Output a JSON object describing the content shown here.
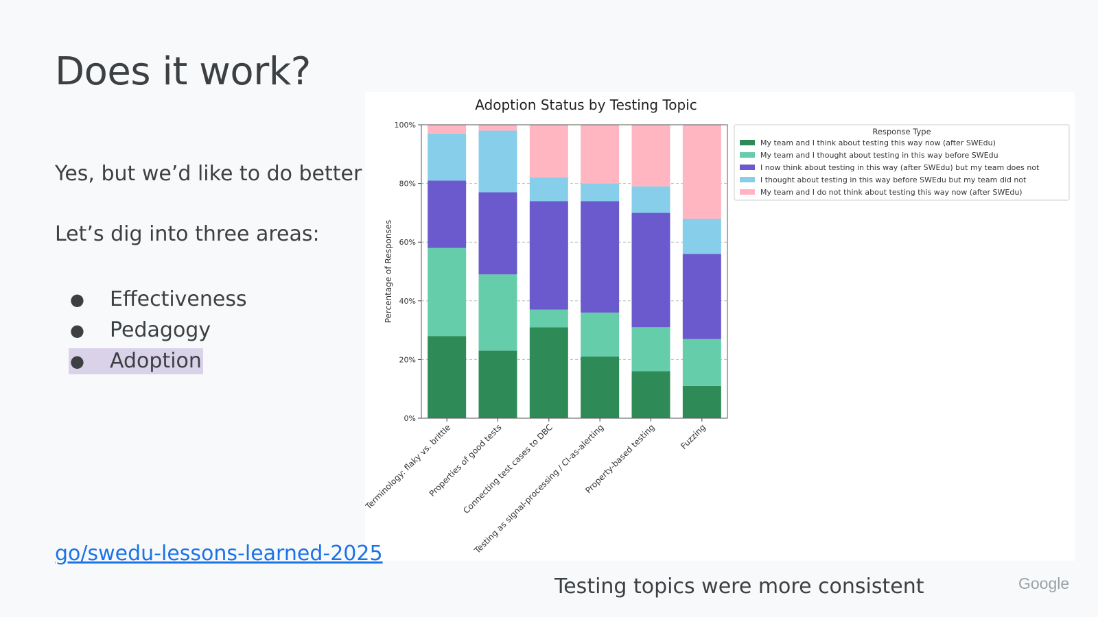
{
  "slide": {
    "title": "Does it work?",
    "para1": "Yes, but we’d like to do better",
    "para2": "Let’s dig into three areas:",
    "bullets": [
      "Effectiveness",
      "Pedagogy",
      "Adoption"
    ],
    "bullet_glyph": "●",
    "highlighted_bullet_color": "#d9d2e9",
    "link": "go/swedu-lessons-learned-2025",
    "caption": "Testing topics were more consistent",
    "logo": "Google"
  },
  "chart_data": {
    "type": "bar",
    "stacked": true,
    "title": "Adoption Status by Testing Topic",
    "ylabel": "Percentage of Responses",
    "xlabel": "",
    "ylim": [
      0,
      100
    ],
    "yticks": [
      "0%",
      "20%",
      "40%",
      "60%",
      "80%",
      "100%"
    ],
    "grid": true,
    "legend_title": "Response Type",
    "legend_position": "right",
    "categories": [
      "Terminology: flaky vs. brittle",
      "Properties of good tests",
      "Connecting test cases to DBC",
      "Testing as signal-processing / CI-as-alerting",
      "Property-based testing",
      "Fuzzing"
    ],
    "series": [
      {
        "name": "My team and I think about testing this way now (after SWEdu)",
        "color": "#2e8b57",
        "values": [
          28,
          23,
          31,
          21,
          16,
          11
        ]
      },
      {
        "name": "My team and I thought about testing in this way before SWEdu",
        "color": "#66cdaa",
        "values": [
          30,
          26,
          6,
          15,
          15,
          16
        ]
      },
      {
        "name": "I now think about testing in this way (after SWEdu) but my team does not",
        "color": "#6a5acd",
        "values": [
          23,
          28,
          37,
          38,
          39,
          29
        ]
      },
      {
        "name": "I thought about testing in this way before SWEdu but my team did not",
        "color": "#87ceeb",
        "values": [
          16,
          21,
          8,
          6,
          9,
          12
        ]
      },
      {
        "name": "My team and I do not think about testing this way now (after SWEdu)",
        "color": "#ffb6c1",
        "values": [
          3,
          2,
          18,
          20,
          21,
          32
        ]
      }
    ]
  }
}
